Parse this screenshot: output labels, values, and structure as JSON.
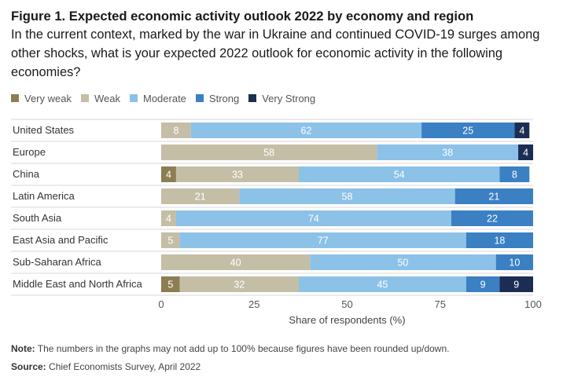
{
  "header": {
    "title": "Figure 1. Expected economic activity outlook 2022 by economy and region",
    "subtitle": "In the current context, marked by the war in Ukraine and continued COVID-19 surges among other shocks, what is your expected 2022 outlook for economic activity in the following economies?"
  },
  "footer": {
    "note_label": "Note:",
    "note_text": " The numbers in the graphs may not add up to 100% because figures have been rounded up/down.",
    "source_label": "Source:",
    "source_text": " Chief Economists Survey, April 2022"
  },
  "chart_data": {
    "type": "bar",
    "orientation": "horizontal",
    "stacked": true,
    "title": "Figure 1. Expected economic activity outlook 2022 by economy and region",
    "xlabel": "Share of respondents (%)",
    "ylabel": "",
    "xlim": [
      0,
      100
    ],
    "xticks": [
      0,
      25,
      50,
      75,
      100
    ],
    "legend_position": "top-left",
    "grid": false,
    "categories": [
      "United States",
      "Europe",
      "China",
      "Latin America",
      "South Asia",
      "East Asia and Pacific",
      "Sub-Saharan Africa",
      "Middle East and North Africa"
    ],
    "series": [
      {
        "name": "Very weak",
        "color": "#8c7d52",
        "values": [
          0,
          0,
          4,
          0,
          0,
          0,
          0,
          5
        ]
      },
      {
        "name": "Weak",
        "color": "#c4bea6",
        "values": [
          8,
          58,
          33,
          21,
          4,
          5,
          40,
          32
        ]
      },
      {
        "name": "Moderate",
        "color": "#8cc1e8",
        "values": [
          62,
          38,
          54,
          58,
          74,
          77,
          50,
          45
        ]
      },
      {
        "name": "Strong",
        "color": "#3a80c3",
        "values": [
          25,
          0,
          8,
          21,
          22,
          18,
          10,
          9
        ]
      },
      {
        "name": "Very Strong",
        "color": "#1b2d52",
        "values": [
          4,
          4,
          0,
          0,
          0,
          0,
          0,
          9
        ]
      }
    ]
  }
}
